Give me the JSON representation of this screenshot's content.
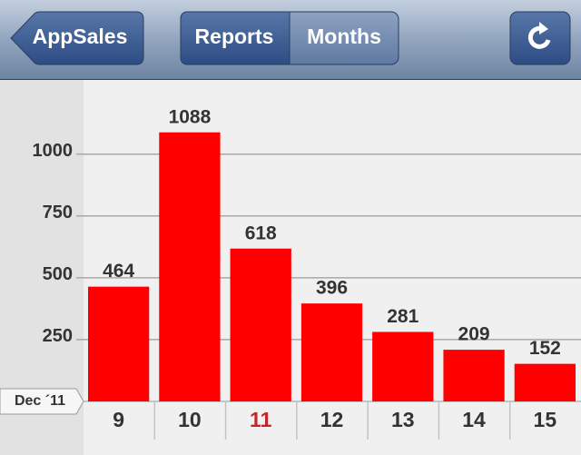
{
  "nav_bar": {
    "back_button": "AppSales",
    "segments": [
      "Reports",
      "Months"
    ],
    "selected_segment": 0
  },
  "chart_data": {
    "type": "bar",
    "x_label": "Dec ´11",
    "categories": [
      "9",
      "10",
      "11",
      "12",
      "13",
      "14",
      "15"
    ],
    "values": [
      464,
      1088,
      618,
      396,
      281,
      209,
      152
    ],
    "color": "#ff0000",
    "highlight_index": 2,
    "highlight_color": "#c1272d",
    "ylim": [
      0,
      1300
    ],
    "yticks": [
      250,
      500,
      750,
      1000
    ],
    "grid": true
  }
}
